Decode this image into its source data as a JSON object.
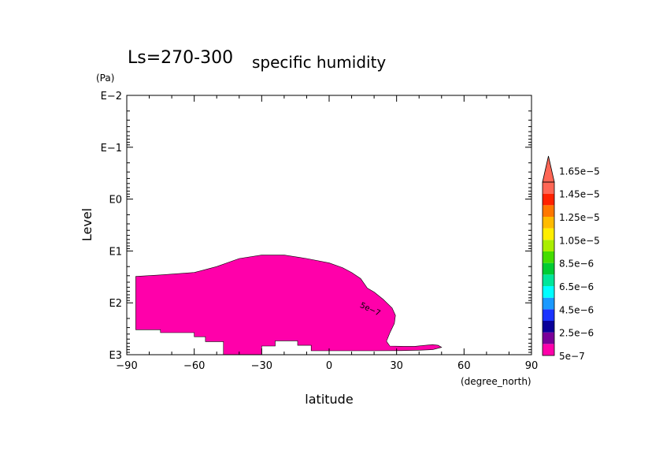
{
  "chart_data": {
    "type": "contour",
    "title_main": "Ls=270-300",
    "title_sub": "specific humidity",
    "xlabel": "latitude",
    "xunit": "(degree_north)",
    "ylabel": "Level",
    "yunit": "(Pa)",
    "xlim": [
      -90,
      90
    ],
    "x_ticks": [
      {
        "value": -90,
        "label": "−90"
      },
      {
        "value": -60,
        "label": "−60"
      },
      {
        "value": -30,
        "label": "−30"
      },
      {
        "value": 0,
        "label": "0"
      },
      {
        "value": 30,
        "label": "30"
      },
      {
        "value": 60,
        "label": "60"
      },
      {
        "value": 90,
        "label": "90"
      }
    ],
    "y_scale": "log",
    "ylim_pa": [
      1000,
      0.01
    ],
    "y_ticks": [
      {
        "value": 0.01,
        "label": "E−2"
      },
      {
        "value": 0.1,
        "label": "E−1"
      },
      {
        "value": 1,
        "label": "E0"
      },
      {
        "value": 10,
        "label": "E1"
      },
      {
        "value": 100,
        "label": "E2"
      },
      {
        "value": 1000,
        "label": "E3"
      }
    ],
    "contour_label": "5e−7",
    "filled_region": {
      "level": "5e-7",
      "color": "#ff00aa",
      "top_boundary": [
        [
          -86,
          31
        ],
        [
          -75,
          29
        ],
        [
          -60,
          26
        ],
        [
          -50,
          20
        ],
        [
          -40,
          14
        ],
        [
          -30,
          12
        ],
        [
          -20,
          12
        ],
        [
          -10,
          14
        ],
        [
          0,
          17
        ],
        [
          6,
          21
        ],
        [
          10,
          26
        ],
        [
          14,
          34
        ],
        [
          17,
          52
        ],
        [
          20,
          62
        ],
        [
          24,
          85
        ],
        [
          28,
          126
        ],
        [
          29.5,
          175
        ],
        [
          29,
          250
        ],
        [
          27,
          380
        ],
        [
          25.5,
          550
        ],
        [
          27,
          680
        ],
        [
          33,
          690
        ],
        [
          38,
          690
        ],
        [
          41,
          670
        ],
        [
          46,
          640
        ],
        [
          48.5,
          660
        ],
        [
          50,
          720
        ],
        [
          46,
          800
        ],
        [
          40,
          820
        ],
        [
          32,
          835
        ],
        [
          20,
          840
        ]
      ],
      "bottom_boundary": [
        [
          -86,
          330
        ],
        [
          -75,
          330
        ],
        [
          -75,
          375
        ],
        [
          -60,
          375
        ],
        [
          -60,
          450
        ],
        [
          -55,
          450
        ],
        [
          -55,
          560
        ],
        [
          -47,
          560
        ],
        [
          -47,
          1000
        ],
        [
          -30,
          1000
        ],
        [
          -30,
          680
        ],
        [
          -24,
          680
        ],
        [
          -24,
          540
        ],
        [
          -14,
          540
        ],
        [
          -14,
          660
        ],
        [
          -8,
          660
        ],
        [
          -8,
          840
        ],
        [
          20,
          840
        ]
      ]
    },
    "colorbar": {
      "levels": [
        "5e−7",
        "2.5e−6",
        "4.5e−6",
        "6.5e−6",
        "8.5e−6",
        "1.05e−5",
        "1.25e−5",
        "1.45e−5",
        "1.65e−5"
      ],
      "colors": [
        "#ff00aa",
        "#7a0099",
        "#0a0099",
        "#1a33ff",
        "#1a99ff",
        "#00ffff",
        "#00e69a",
        "#00cc33",
        "#44dd00",
        "#aaee00",
        "#ffee00",
        "#ffbb00",
        "#ff7700",
        "#ff2200",
        "#ff6655"
      ]
    }
  }
}
